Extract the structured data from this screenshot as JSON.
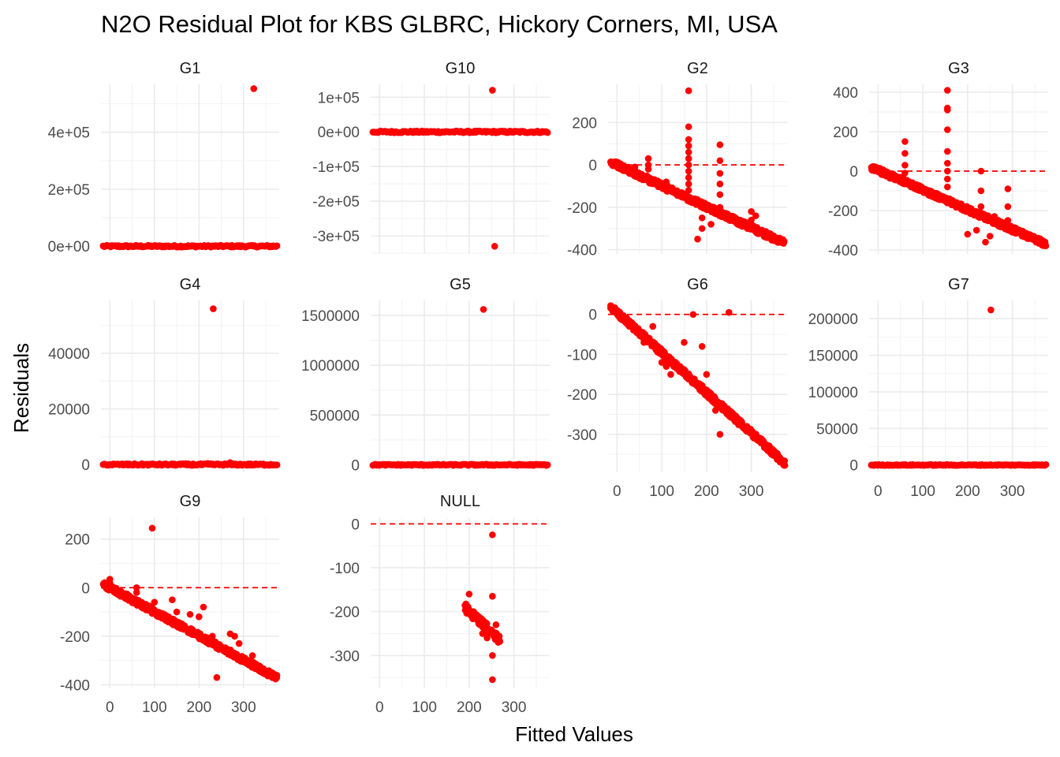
{
  "title": "N2O Residual Plot for KBS GLBRC, Hickory Corners, MI, USA",
  "xlabel": "Fitted Values",
  "ylabel": "Residuals",
  "colors": {
    "points": "#ff0000",
    "reference_line": "#ff0000",
    "grid": "#ebebeb",
    "text": "#4d4d4d"
  },
  "chart_data": {
    "type": "scatter",
    "layout": "facet_wrap",
    "x_domain": [
      -20,
      380
    ],
    "x_ticks": [
      0,
      100,
      200,
      300
    ],
    "x_tick_labels": [
      "0",
      "100",
      "200",
      "300"
    ],
    "reference_line": {
      "y": 0,
      "style": "dashed"
    },
    "grid": true,
    "legend": "none",
    "panels": [
      {
        "label": "G1",
        "ylim": [
          -27000,
          568000
        ],
        "yticks": [
          0,
          200000,
          400000
        ],
        "ytick_labels": [
          "0e+00",
          "2e+05",
          "4e+05"
        ],
        "band": {
          "x": [
            -15,
            375
          ],
          "y": [
            -3000,
            3000
          ]
        },
        "points": [
          [
            323,
            553000
          ]
        ]
      },
      {
        "label": "G10",
        "ylim": [
          -352000,
          137000
        ],
        "yticks": [
          -300000,
          -200000,
          -100000,
          0,
          100000
        ],
        "ytick_labels": [
          "-3e+05",
          "-2e+05",
          "-1e+05",
          "0e+00",
          "1e+05"
        ],
        "band": {
          "x": [
            -15,
            375
          ],
          "y": [
            -2500,
            2500
          ]
        },
        "points": [
          [
            252,
            120000
          ],
          [
            257,
            -330000
          ]
        ]
      },
      {
        "label": "G2",
        "ylim": [
          -420,
          380
        ],
        "yticks": [
          -400,
          -200,
          0,
          200
        ],
        "ytick_labels": [
          "-400",
          "-200",
          "0",
          "200"
        ],
        "trend": {
          "x": [
            -15,
            375
          ],
          "y": [
            15,
            -370
          ],
          "spread": 14,
          "n": 520
        },
        "points": [
          [
            160,
            350
          ],
          [
            160,
            180
          ],
          [
            160,
            120
          ],
          [
            160,
            90
          ],
          [
            160,
            60
          ],
          [
            160,
            30
          ],
          [
            160,
            0
          ],
          [
            160,
            -30
          ],
          [
            160,
            -60
          ],
          [
            160,
            -90
          ],
          [
            160,
            -120
          ],
          [
            230,
            95
          ],
          [
            230,
            20
          ],
          [
            230,
            -40
          ],
          [
            230,
            -90
          ],
          [
            230,
            -140
          ],
          [
            230,
            -200
          ],
          [
            70,
            30
          ],
          [
            70,
            0
          ],
          [
            70,
            -20
          ],
          [
            40,
            -10
          ],
          [
            190,
            -250
          ],
          [
            190,
            -300
          ],
          [
            180,
            -350
          ],
          [
            210,
            -280
          ],
          [
            300,
            -220
          ],
          [
            300,
            -280
          ],
          [
            310,
            -240
          ],
          [
            300,
            -260
          ],
          [
            260,
            -260
          ],
          [
            280,
            -290
          ],
          [
            110,
            -80
          ],
          [
            130,
            -130
          ]
        ]
      },
      {
        "label": "G3",
        "ylim": [
          -420,
          440
        ],
        "yticks": [
          -400,
          -200,
          0,
          200,
          400
        ],
        "ytick_labels": [
          "-400",
          "-200",
          "0",
          "200",
          "400"
        ],
        "trend": {
          "x": [
            -15,
            375
          ],
          "y": [
            20,
            -370
          ],
          "spread": 14,
          "n": 520
        },
        "points": [
          [
            155,
            410
          ],
          [
            155,
            320
          ],
          [
            155,
            310
          ],
          [
            155,
            210
          ],
          [
            155,
            100
          ],
          [
            155,
            40
          ],
          [
            155,
            0
          ],
          [
            155,
            -40
          ],
          [
            155,
            -80
          ],
          [
            60,
            150
          ],
          [
            60,
            90
          ],
          [
            60,
            30
          ],
          [
            60,
            -10
          ],
          [
            230,
            0
          ],
          [
            230,
            -100
          ],
          [
            230,
            -180
          ],
          [
            290,
            -90
          ],
          [
            290,
            -180
          ],
          [
            290,
            -250
          ],
          [
            200,
            -320
          ],
          [
            220,
            -300
          ],
          [
            240,
            -360
          ],
          [
            250,
            -330
          ],
          [
            270,
            -280
          ],
          [
            260,
            -230
          ],
          [
            300,
            -310
          ],
          [
            120,
            -110
          ]
        ]
      },
      {
        "label": "G4",
        "ylim": [
          -2800,
          59000
        ],
        "yticks": [
          0,
          20000,
          40000
        ],
        "ytick_labels": [
          "0",
          "20000",
          "40000"
        ],
        "band": {
          "x": [
            -15,
            375
          ],
          "y": [
            -300,
            300
          ]
        },
        "points": [
          [
            232,
            56000
          ],
          [
            270,
            700
          ],
          [
            220,
            400
          ]
        ]
      },
      {
        "label": "G5",
        "ylim": [
          -75000,
          1650000
        ],
        "yticks": [
          0,
          500000,
          1000000,
          1500000
        ],
        "ytick_labels": [
          "0",
          "500000",
          "1000000",
          "1500000"
        ],
        "band": {
          "x": [
            -15,
            375
          ],
          "y": [
            -6000,
            6000
          ]
        },
        "points": [
          [
            232,
            1560000
          ]
        ]
      },
      {
        "label": "G6",
        "ylim": [
          -395,
          35
        ],
        "yticks": [
          -300,
          -200,
          -100,
          0
        ],
        "ytick_labels": [
          "-300",
          "-200",
          "-100",
          "0"
        ],
        "trend": {
          "x": [
            -15,
            375
          ],
          "y": [
            20,
            -372
          ],
          "spread": 8,
          "n": 520
        },
        "points": [
          [
            170,
            0
          ],
          [
            250,
            5
          ],
          [
            150,
            -70
          ],
          [
            190,
            -80
          ],
          [
            80,
            -30
          ],
          [
            120,
            -150
          ],
          [
            110,
            -130
          ],
          [
            200,
            -150
          ],
          [
            230,
            -300
          ],
          [
            220,
            -240
          ],
          [
            260,
            -250
          ],
          [
            290,
            -280
          ],
          [
            100,
            -120
          ],
          [
            60,
            -70
          ]
        ]
      },
      {
        "label": "G7",
        "ylim": [
          -10000,
          225000
        ],
        "yticks": [
          0,
          50000,
          100000,
          150000,
          200000
        ],
        "ytick_labels": [
          "0",
          "50000",
          "100000",
          "150000",
          "200000"
        ],
        "band": {
          "x": [
            -15,
            375
          ],
          "y": [
            -600,
            600
          ]
        },
        "points": [
          [
            252,
            212000
          ]
        ]
      },
      {
        "label": "G9",
        "ylim": [
          -415,
          290
        ],
        "yticks": [
          -400,
          -200,
          0,
          200
        ],
        "ytick_labels": [
          "-400",
          "-200",
          "0",
          "200"
        ],
        "trend": {
          "x": [
            -15,
            375
          ],
          "y": [
            15,
            -372
          ],
          "spread": 12,
          "n": 520
        },
        "points": [
          [
            95,
            245
          ],
          [
            0,
            35
          ],
          [
            0,
            20
          ],
          [
            60,
            0
          ],
          [
            60,
            -20
          ],
          [
            100,
            -60
          ],
          [
            140,
            -50
          ],
          [
            210,
            -80
          ],
          [
            200,
            -120
          ],
          [
            180,
            -110
          ],
          [
            270,
            -190
          ],
          [
            280,
            -200
          ],
          [
            290,
            -230
          ],
          [
            240,
            -370
          ],
          [
            230,
            -200
          ],
          [
            150,
            -100
          ],
          [
            320,
            -280
          ]
        ]
      },
      {
        "label": "NULL",
        "ylim": [
          -375,
          15
        ],
        "yticks": [
          -300,
          -200,
          -100,
          0
        ],
        "ytick_labels": [
          "-300",
          "-200",
          "-100",
          "0"
        ],
        "trend": {
          "x": [
            190,
            270
          ],
          "y": [
            -190,
            -265
          ],
          "spread": 10,
          "n": 60
        },
        "points": [
          [
            252,
            -25
          ],
          [
            252,
            -165
          ],
          [
            200,
            -160
          ],
          [
            252,
            -300
          ],
          [
            252,
            -355
          ],
          [
            230,
            -250
          ],
          [
            240,
            -260
          ],
          [
            260,
            -230
          ],
          [
            265,
            -270
          ],
          [
            210,
            -200
          ]
        ]
      }
    ]
  }
}
